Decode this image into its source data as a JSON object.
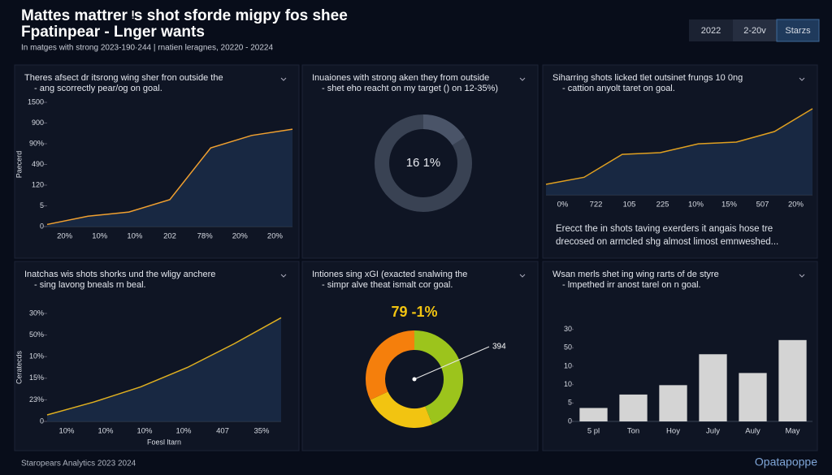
{
  "header": {
    "title_lines": [
      "Mattes mattrer ᵎs shot sforde migpy fos shee",
      "Fpatinpear - Lnger  wants"
    ],
    "subtitle": "In matges with strong 2023-190·244 | rnatien leragnes, 20220 - 20224",
    "buttons": [
      "2022",
      "2-20v",
      "Starzs"
    ]
  },
  "chart_data": [
    {
      "type": "line",
      "title_lines": [
        "Theres afsect dr itsrong wing sher fron outside the",
        "- ang scorrectly pear/og on goal."
      ],
      "y_label": "Paecerd",
      "categories": [
        "20%",
        "10%",
        "10%",
        "202",
        "78%",
        "20%",
        "20%"
      ],
      "values": [
        0.1,
        0.5,
        0.7,
        1.3,
        3.8,
        4.4,
        4.7
      ],
      "color": "#f0a030",
      "ylim": [
        0,
        6
      ],
      "yticks": [
        0,
        {
          "value": 1,
          "label": "5"
        },
        {
          "value": 2,
          "label": "120"
        },
        {
          "value": 3,
          "label": "490"
        },
        {
          "value": 4,
          "label": "90%"
        },
        {
          "value": 5,
          "label": "900"
        },
        {
          "value": 6,
          "label": "1500"
        }
      ]
    },
    {
      "type": "donut",
      "title_lines": [
        "Inuaiones with strong aken they from outside",
        "- shet eho reacht on my target () on 12-35%)"
      ],
      "values": [
        16.1
      ],
      "value_labels": [
        "16 1%"
      ],
      "color": "#4a5468"
    },
    {
      "type": "line",
      "title_lines": [
        "Siharring shots licked tlet outsinet frungs 10 0ng",
        "- cattion anyolt taret on goal."
      ],
      "categories": [
        "0%",
        "722",
        "105",
        "225",
        "10%",
        "15%",
        "507",
        "20%"
      ],
      "values": [
        0.6,
        1.0,
        2.3,
        2.4,
        2.9,
        3.0,
        3.6,
        4.9
      ],
      "color": "#e0a020",
      "ylim": [
        0,
        6
      ],
      "note_lines": [
        "Erecct the in shots taving exerders it angais hose tre",
        "drecosed on armcled shg almost limost emnweshed..."
      ]
    },
    {
      "type": "line",
      "title_lines": [
        "Inatchas wis shots shorks und the wligy anchere",
        "- sing lavong bneals rn beal."
      ],
      "y_label": "Ceratecds",
      "x_label": "Foesl ltarn",
      "categories": [
        "10%",
        "10%",
        "10%",
        "10%",
        "407",
        "35%"
      ],
      "values": [
        0.3,
        0.9,
        1.6,
        2.5,
        3.6,
        4.8
      ],
      "color": "#e0b020",
      "ylim": [
        0,
        5
      ],
      "yticks": [
        0,
        {
          "value": 1,
          "label": "23%"
        },
        {
          "value": 2,
          "label": "15%"
        },
        {
          "value": 3,
          "label": "10%"
        },
        {
          "value": 4,
          "label": "50%"
        },
        {
          "value": 5,
          "label": "30%"
        }
      ]
    },
    {
      "type": "donut",
      "title_lines": [
        "Intiones sing xGI (exacted snalwing the",
        "- simpr alve theat ismalt cor goal."
      ],
      "label": "79 -1%",
      "annotation": "394",
      "values": [
        44,
        24,
        32
      ],
      "colors": [
        "#9cc41c",
        "#f2c411",
        "#f57f0c"
      ]
    },
    {
      "type": "bar",
      "title_lines": [
        "Wsan merls shet ing wing rarts of de styre",
        "- lmpethed irr anost tarel on n goal."
      ],
      "categories": [
        "5 pl",
        "Ton",
        "Hoy",
        "July",
        "Auly",
        "May"
      ],
      "values": [
        0.73,
        1.46,
        1.97,
        3.65,
        2.63,
        4.42
      ],
      "color": "#d4d4d4",
      "ylim": [
        0,
        6
      ],
      "yticks": [
        0,
        {
          "value": 1,
          "label": "5"
        },
        {
          "value": 2,
          "label": "10"
        },
        {
          "value": 3,
          "label": "10"
        },
        {
          "value": 4,
          "label": "50"
        },
        {
          "value": 5,
          "label": "30"
        }
      ]
    }
  ],
  "footer": {
    "left": "Staropears Analytics 2023 2024",
    "right": "Opatapoppe"
  }
}
